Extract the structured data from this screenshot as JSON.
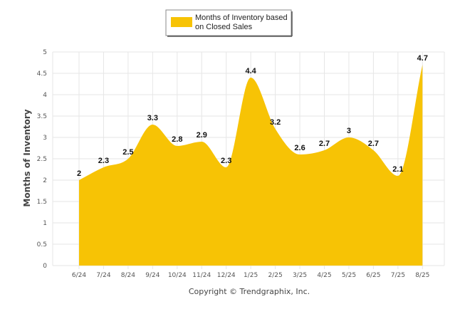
{
  "chart_data": {
    "type": "area",
    "categories": [
      "6/24",
      "7/24",
      "8/24",
      "9/24",
      "10/24",
      "11/24",
      "12/24",
      "1/25",
      "2/25",
      "3/25",
      "4/25",
      "5/25",
      "6/25",
      "7/25",
      "8/25"
    ],
    "series": [
      {
        "name": "Months of Inventory based on Closed Sales",
        "values": [
          2,
          2.3,
          2.5,
          3.3,
          2.8,
          2.9,
          2.3,
          4.4,
          3.2,
          2.6,
          2.7,
          3,
          2.7,
          2.1,
          4.7
        ],
        "color": "#F7C305"
      }
    ],
    "ylabel": "Months of Inventory",
    "xlabel": "",
    "ylim": [
      0,
      5
    ],
    "yticks": [
      0,
      0.5,
      1,
      1.5,
      2,
      2.5,
      3,
      3.5,
      4,
      4.5,
      5
    ],
    "grid": true,
    "legend_position": "top-center",
    "data_labels": true
  },
  "legend": {
    "line1": "Months of Inventory based",
    "line2": "on Closed Sales"
  },
  "footer": {
    "copyright": "Copyright © Trendgraphix, Inc."
  },
  "colors": {
    "grid": "#E6E6E6",
    "area": "#F7C305"
  }
}
